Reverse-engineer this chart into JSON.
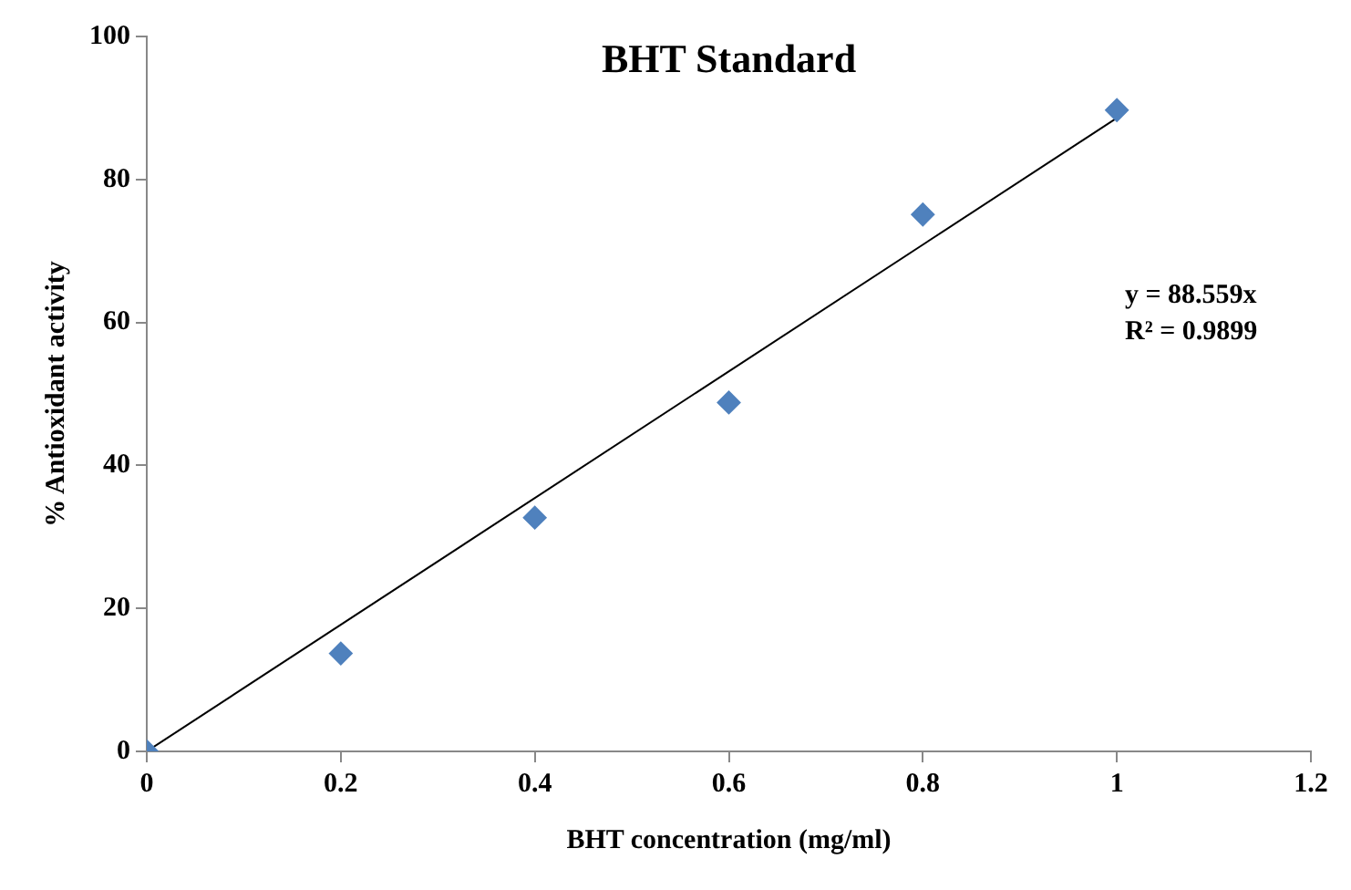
{
  "chart_data": {
    "type": "scatter",
    "title": "BHT Standard",
    "xlabel": "BHT concentration (mg/ml)",
    "ylabel": "% Antioxidant activity",
    "series": [
      {
        "marker": "diamond",
        "color": "#4f81bd",
        "x": [
          0,
          0.2,
          0.4,
          0.6,
          0.8,
          1
        ],
        "values": [
          0,
          13.7,
          32.7,
          48.8,
          75.1,
          89.7
        ]
      },
      {
        "type": "line",
        "marker": "none",
        "color": "#000000",
        "x": [
          0,
          1
        ],
        "values": [
          0,
          88.6
        ]
      }
    ],
    "annotations": [
      "y = 88.559x",
      "R² = 0.9899"
    ],
    "xlim": [
      0,
      1.2
    ],
    "xticks": [
      0,
      0.2,
      0.4,
      0.6,
      0.8,
      1,
      1.2
    ],
    "ylim": [
      0,
      100
    ],
    "yticks": [
      0,
      20,
      40,
      60,
      80,
      100
    ],
    "grid": false,
    "legend": false
  }
}
